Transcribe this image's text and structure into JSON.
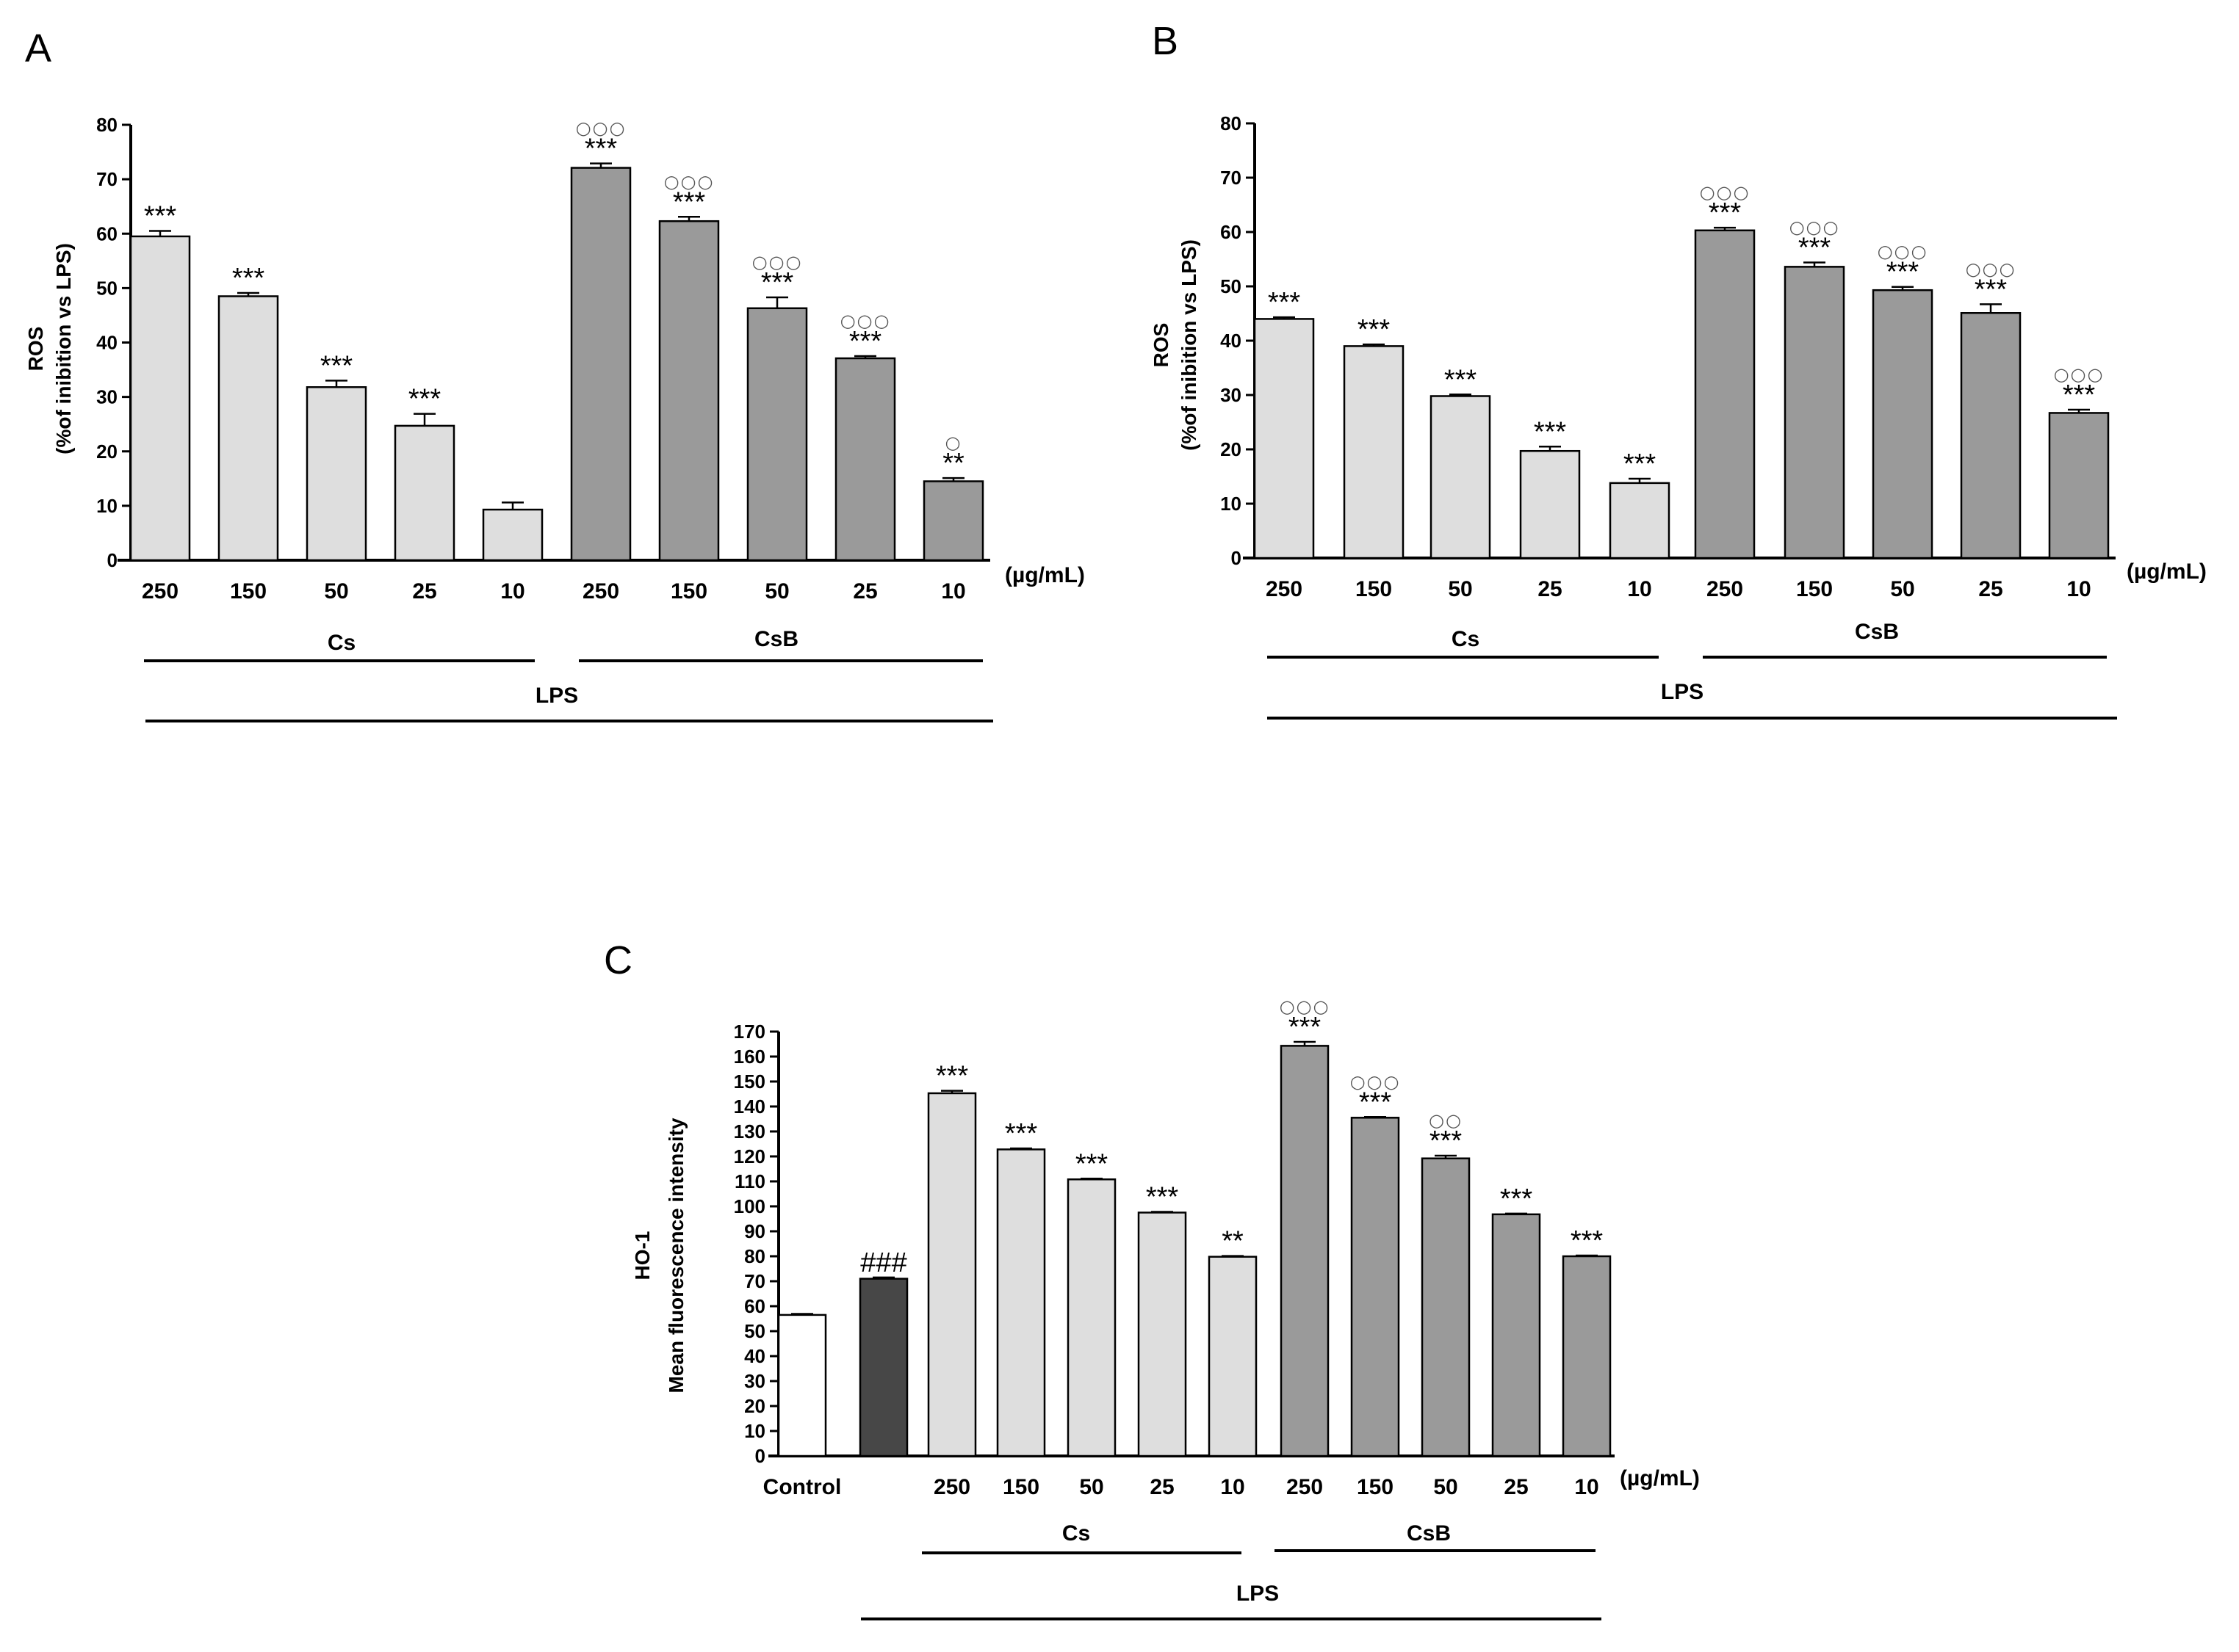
{
  "chart_data": [
    {
      "panel": "A",
      "type": "bar",
      "ylabel_line1": "ROS",
      "ylabel_line2": "(%of inibition vs LPS)",
      "ylim": [
        0,
        80
      ],
      "yticks": [
        0,
        10,
        20,
        30,
        40,
        50,
        60,
        70,
        80
      ],
      "categories": [
        "250",
        "150",
        "50",
        "25",
        "10",
        "250",
        "150",
        "50",
        "25",
        "10"
      ],
      "values": [
        59.5,
        48.5,
        31.8,
        24.7,
        9.3,
        72.1,
        62.3,
        46.3,
        37.1,
        14.5
      ],
      "errors": [
        1.0,
        0.6,
        1.2,
        2.2,
        1.3,
        0.8,
        0.8,
        2.0,
        0.4,
        0.6
      ],
      "bar_groups": [
        "Cs",
        "Cs",
        "Cs",
        "Cs",
        "Cs",
        "CsB",
        "CsB",
        "CsB",
        "CsB",
        "CsB"
      ],
      "stars": [
        "***",
        "***",
        "***",
        "***",
        "",
        "***",
        "***",
        "***",
        "***",
        "**"
      ],
      "circles": [
        "",
        "",
        "",
        "",
        "",
        "○○○",
        "○○○",
        "○○○",
        "○○○",
        "○"
      ],
      "unit": "(µg/mL)",
      "group_labels": [
        "Cs",
        "CsB"
      ],
      "outer_label": "LPS"
    },
    {
      "panel": "B",
      "type": "bar",
      "ylabel_line1": "ROS",
      "ylabel_line2": "(%of inibition vs LPS)",
      "ylim": [
        0,
        80
      ],
      "yticks": [
        0,
        10,
        20,
        30,
        40,
        50,
        60,
        70,
        80
      ],
      "categories": [
        "250",
        "150",
        "50",
        "25",
        "10",
        "250",
        "150",
        "50",
        "25",
        "10"
      ],
      "values": [
        44.0,
        39.0,
        29.8,
        19.7,
        13.8,
        60.3,
        53.6,
        49.3,
        45.1,
        26.7
      ],
      "errors": [
        0.3,
        0.3,
        0.3,
        0.8,
        0.8,
        0.5,
        0.8,
        0.6,
        1.6,
        0.6
      ],
      "bar_groups": [
        "Cs",
        "Cs",
        "Cs",
        "Cs",
        "Cs",
        "CsB",
        "CsB",
        "CsB",
        "CsB",
        "CsB"
      ],
      "stars": [
        "***",
        "***",
        "***",
        "***",
        "***",
        "***",
        "***",
        "***",
        "***",
        "***"
      ],
      "circles": [
        "",
        "",
        "",
        "",
        "",
        "○○○",
        "○○○",
        "○○○",
        "○○○",
        "○○○"
      ],
      "unit": "(µg/mL)",
      "group_labels": [
        "Cs",
        "CsB"
      ],
      "outer_label": "LPS"
    },
    {
      "panel": "C",
      "type": "bar",
      "ylabel_line1": "HO-1",
      "ylabel_line2": "Mean fluorescence intensity",
      "ylim": [
        0,
        170
      ],
      "yticks": [
        0,
        10,
        20,
        30,
        40,
        50,
        60,
        70,
        80,
        90,
        100,
        110,
        120,
        130,
        140,
        150,
        160,
        170
      ],
      "categories": [
        "Control",
        "",
        "250",
        "150",
        "50",
        "25",
        "10",
        "250",
        "150",
        "50",
        "25",
        "10"
      ],
      "values": [
        56.5,
        71.0,
        145.3,
        122.8,
        110.8,
        97.5,
        79.8,
        164.3,
        135.5,
        119.2,
        96.8,
        80.0
      ],
      "errors": [
        0.4,
        0.5,
        1.0,
        0.4,
        0.3,
        0.3,
        0.3,
        1.6,
        0.3,
        1.1,
        0.3,
        0.3
      ],
      "bar_groups": [
        "Control",
        "LPS",
        "Cs",
        "Cs",
        "Cs",
        "Cs",
        "Cs",
        "CsB",
        "CsB",
        "CsB",
        "CsB",
        "CsB"
      ],
      "stars": [
        "",
        "###",
        "***",
        "***",
        "***",
        "***",
        "**",
        "***",
        "***",
        "***",
        "***",
        "***"
      ],
      "circles": [
        "",
        "",
        "",
        "",
        "",
        "",
        "",
        "○○○",
        "○○○",
        "○○",
        "",
        ""
      ],
      "unit": "(µg/mL)",
      "group_labels": [
        "Cs",
        "CsB"
      ],
      "outer_label": "LPS"
    }
  ],
  "colors": {
    "cs_fill": "#dedede",
    "csb_fill": "#9a9a9a",
    "control_fill": "#ffffff",
    "lps_fill": "#474747",
    "stroke": "#000000"
  }
}
